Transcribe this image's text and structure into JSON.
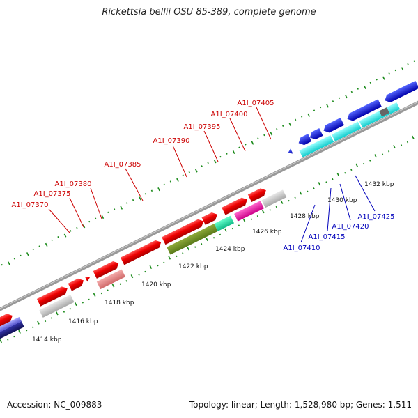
{
  "title": "Rickettsia bellii OSU 85-389, complete genome",
  "footer": {
    "accession": "Accession: NC_009883",
    "summary": "Topology: linear; Length: 1,528,980 bp; Genes: 1,511"
  },
  "scale": {
    "ticks": [
      "1414 kbp",
      "1416 kbp",
      "1418 kbp",
      "1420 kbp",
      "1422 kbp",
      "1424 kbp",
      "1426 kbp",
      "1428 kbp",
      "1430 kbp",
      "1432 kbp"
    ]
  },
  "gene_labels": {
    "forward": [
      "A1I_07370",
      "A1I_07375",
      "A1I_07380",
      "A1I_07385",
      "A1I_07390",
      "A1I_07395",
      "A1I_07400",
      "A1I_07405"
    ],
    "reverse": [
      "A1I_07410",
      "A1I_07415",
      "A1I_07420",
      "A1I_07425"
    ]
  },
  "colors": {
    "forward_label": "#cc0000",
    "reverse_label": "#0000bb",
    "backbone": "#999999",
    "dots": "#1a8a1a"
  }
}
